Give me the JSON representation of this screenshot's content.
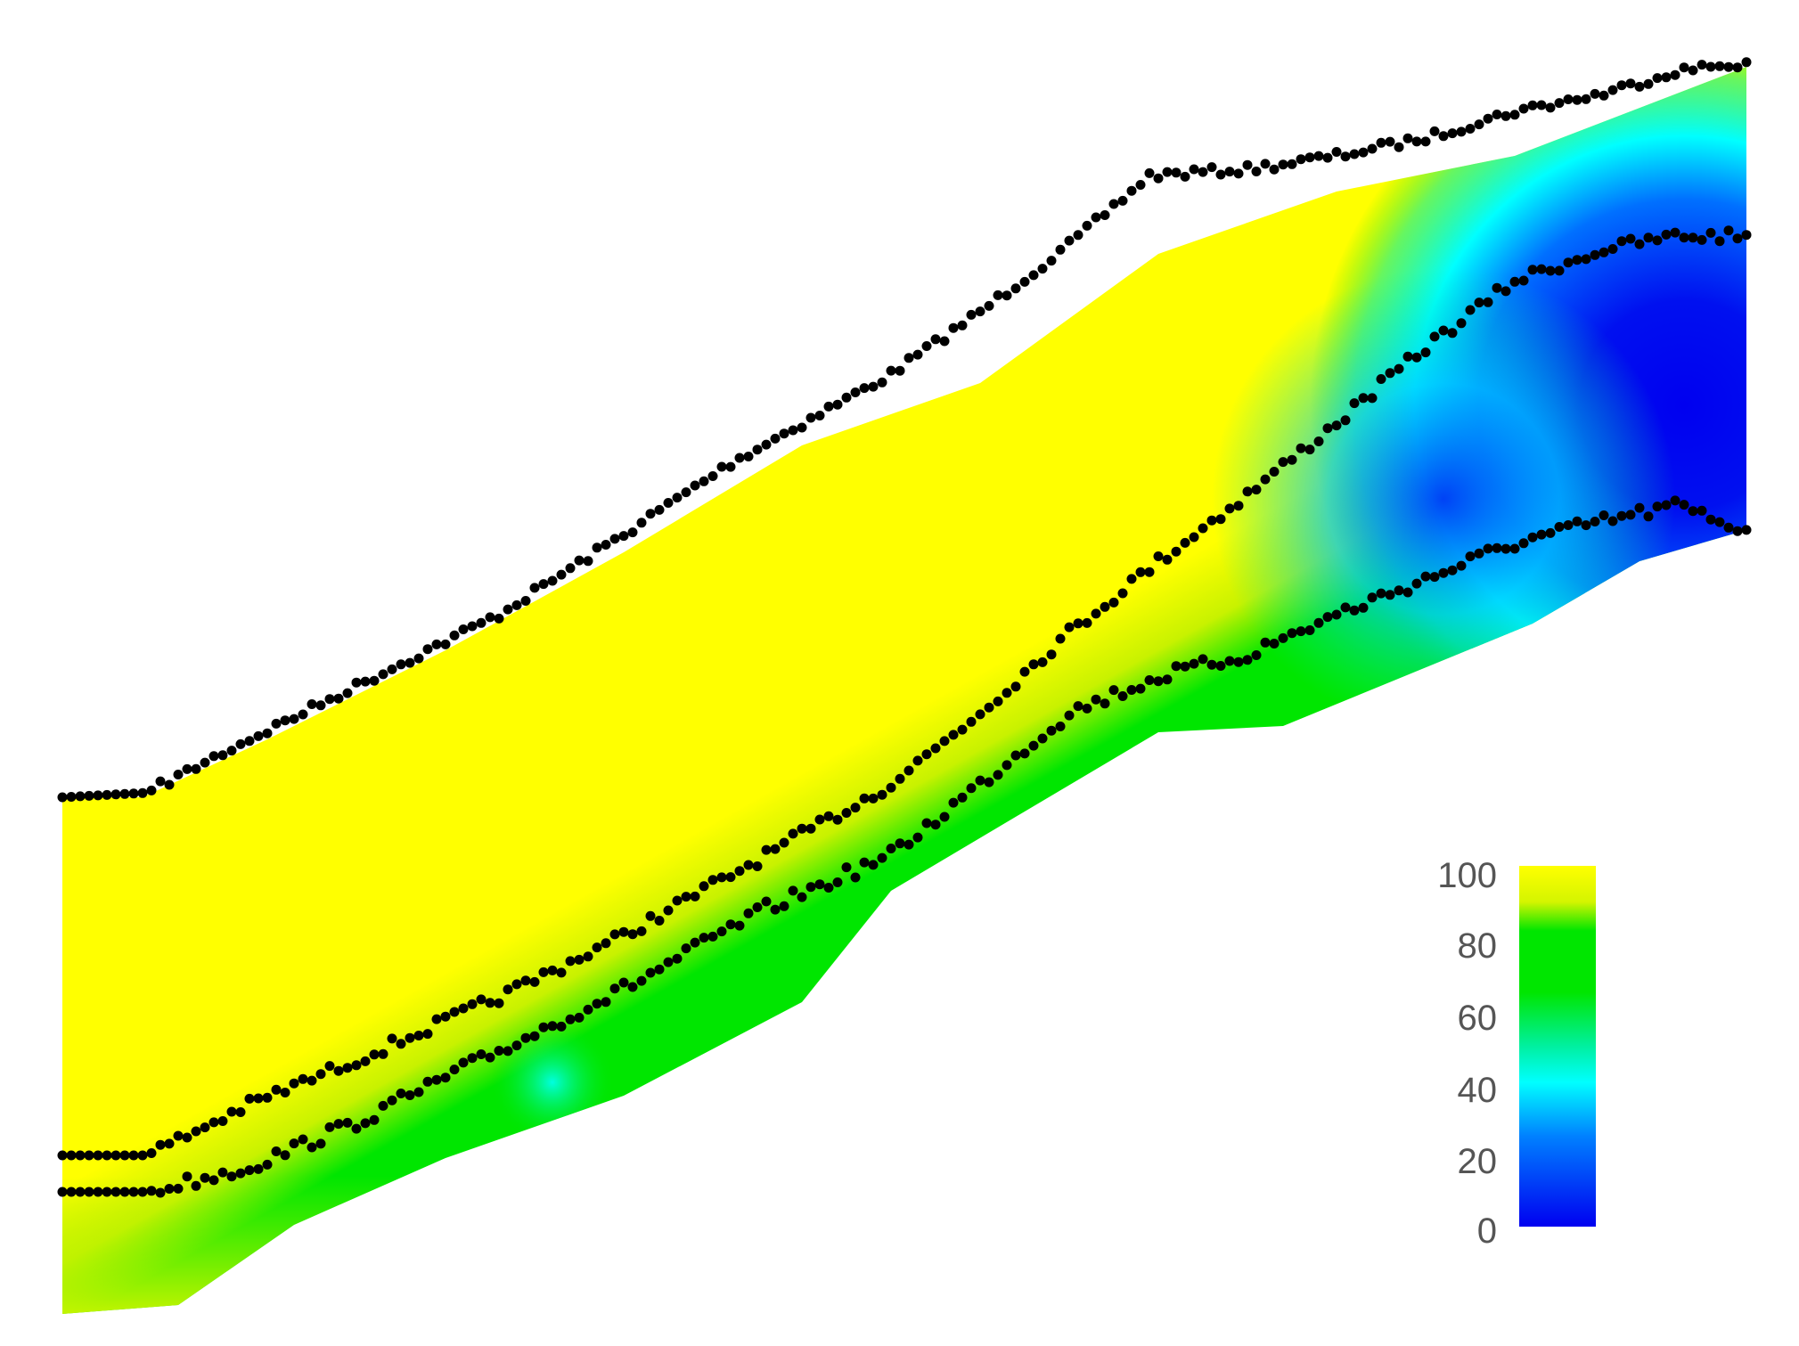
{
  "chart_data": {
    "type": "heatmap",
    "title": "",
    "xlabel": "",
    "ylabel": "",
    "colorbar": {
      "ticks": [
        "100",
        "80",
        "60",
        "40",
        "20",
        "0"
      ],
      "range": [
        0,
        100
      ],
      "stops": [
        {
          "value": 100,
          "color": "#ffff00"
        },
        {
          "value": 90,
          "color": "#d4f500"
        },
        {
          "value": 82,
          "color": "#00e600"
        },
        {
          "value": 65,
          "color": "#00e600"
        },
        {
          "value": 50,
          "color": "#00f0a0"
        },
        {
          "value": 40,
          "color": "#00ffff"
        },
        {
          "value": 25,
          "color": "#0080ff"
        },
        {
          "value": 0,
          "color": "#0000f0"
        }
      ]
    },
    "series": [
      {
        "values": [
          "top surface trace"
        ]
      },
      {
        "values": [
          "upper interface trace"
        ]
      },
      {
        "values": [
          "lower interface trace"
        ]
      }
    ],
    "grid": false,
    "legend": "colorbar right"
  }
}
